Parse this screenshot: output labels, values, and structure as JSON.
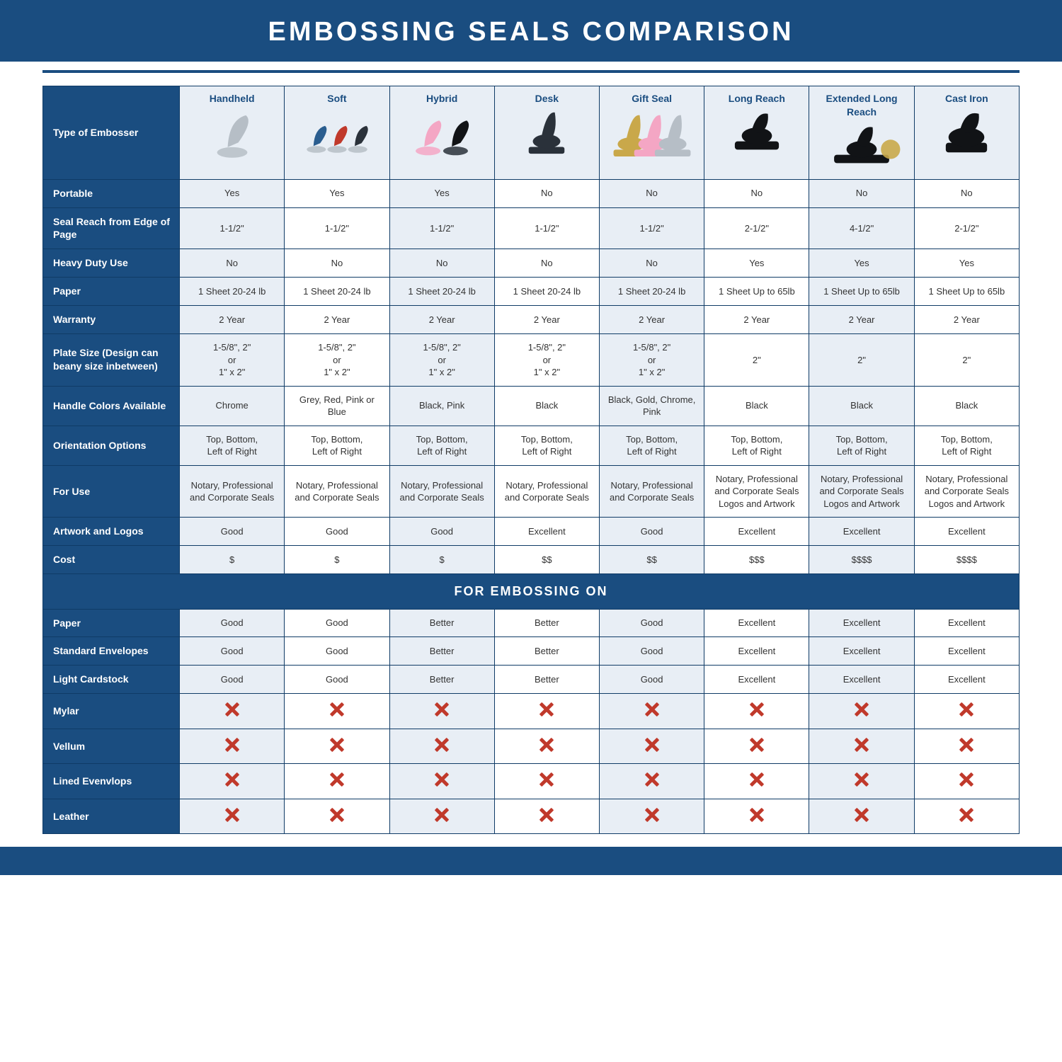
{
  "type": "comparison-table",
  "title": "EMBOSSING SEALS COMPARISON",
  "colors": {
    "header_bg": "#1a4d80",
    "header_text": "#ffffff",
    "alt_row_bg": "#e8eef5",
    "plain_row_bg": "#ffffff",
    "border": "#0f3b66",
    "x_mark": "#c0392b",
    "colhead_text": "#1a4d80"
  },
  "typography": {
    "title_fontsize": 38,
    "title_letter_spacing": 4,
    "rowhead_fontsize": 14,
    "cell_fontsize": 13,
    "section_header_fontsize": 18
  },
  "columns": [
    {
      "key": "handheld",
      "label": "Handheld",
      "svg_style": "silver-single"
    },
    {
      "key": "soft",
      "label": "Soft",
      "svg_style": "multi-color"
    },
    {
      "key": "hybrid",
      "label": "Hybrid",
      "svg_style": "pink-black"
    },
    {
      "key": "desk",
      "label": "Desk",
      "svg_style": "dark-desk"
    },
    {
      "key": "gift",
      "label": "Gift Seal",
      "svg_style": "gold-pink-chrome"
    },
    {
      "key": "longreach",
      "label": "Long Reach",
      "svg_style": "black-long"
    },
    {
      "key": "extended",
      "label": "Extended Long Reach",
      "svg_style": "black-ext"
    },
    {
      "key": "castiron",
      "label": "Cast Iron",
      "svg_style": "black-heavy"
    }
  ],
  "row_header_label": "Type of Embosser",
  "section2_title": "FOR EMBOSSING ON",
  "rows_section1": [
    {
      "label": "Portable",
      "cells": [
        "Yes",
        "Yes",
        "Yes",
        "No",
        "No",
        "No",
        "No",
        "No"
      ]
    },
    {
      "label": "Seal Reach from Edge of Page",
      "cells": [
        "1-1/2\"",
        "1-1/2\"",
        "1-1/2\"",
        "1-1/2\"",
        "1-1/2\"",
        "2-1/2\"",
        "4-1/2\"",
        "2-1/2\""
      ]
    },
    {
      "label": "Heavy Duty Use",
      "cells": [
        "No",
        "No",
        "No",
        "No",
        "No",
        "Yes",
        "Yes",
        "Yes"
      ]
    },
    {
      "label": "Paper",
      "cells": [
        "1 Sheet 20-24 lb",
        "1 Sheet 20-24 lb",
        "1 Sheet 20-24 lb",
        "1 Sheet 20-24 lb",
        "1 Sheet 20-24 lb",
        "1 Sheet Up to 65lb",
        "1 Sheet Up to 65lb",
        "1 Sheet Up to 65lb"
      ]
    },
    {
      "label": "Warranty",
      "cells": [
        "2 Year",
        "2 Year",
        "2 Year",
        "2 Year",
        "2 Year",
        "2 Year",
        "2 Year",
        "2 Year"
      ]
    },
    {
      "label": "Plate Size (Design can beany size inbetween)",
      "cells": [
        "1-5/8\", 2\"\nor\n1\" x 2\"",
        "1-5/8\", 2\"\nor\n1\" x 2\"",
        "1-5/8\", 2\"\nor\n1\" x 2\"",
        "1-5/8\", 2\"\nor\n1\" x 2\"",
        "1-5/8\", 2\"\nor\n1\" x 2\"",
        "2\"",
        "2\"",
        "2\""
      ]
    },
    {
      "label": "Handle Colors Available",
      "cells": [
        "Chrome",
        "Grey, Red, Pink or Blue",
        "Black, Pink",
        "Black",
        "Black, Gold, Chrome, Pink",
        "Black",
        "Black",
        "Black"
      ]
    },
    {
      "label": "Orientation Options",
      "cells": [
        "Top, Bottom,\nLeft of Right",
        "Top, Bottom,\nLeft of Right",
        "Top, Bottom,\nLeft of Right",
        "Top, Bottom,\nLeft of Right",
        "Top, Bottom,\nLeft of Right",
        "Top, Bottom,\nLeft of Right",
        "Top, Bottom,\nLeft of Right",
        "Top, Bottom,\nLeft of Right"
      ]
    },
    {
      "label": "For Use",
      "cells": [
        "Notary, Professional and Corporate Seals",
        "Notary, Professional and Corporate Seals",
        "Notary, Professional and Corporate Seals",
        "Notary, Professional and Corporate Seals",
        "Notary, Professional and Corporate Seals",
        "Notary, Professional and Corporate Seals Logos and Artwork",
        "Notary, Professional and Corporate Seals Logos and Artwork",
        "Notary, Professional and Corporate Seals Logos and Artwork"
      ]
    },
    {
      "label": "Artwork and Logos",
      "cells": [
        "Good",
        "Good",
        "Good",
        "Excellent",
        "Good",
        "Excellent",
        "Excellent",
        "Excellent"
      ]
    },
    {
      "label": "Cost",
      "cells": [
        "$",
        "$",
        "$",
        "$$",
        "$$",
        "$$$",
        "$$$$",
        "$$$$"
      ]
    }
  ],
  "rows_section2": [
    {
      "label": "Paper",
      "cells": [
        "Good",
        "Good",
        "Better",
        "Better",
        "Good",
        "Excellent",
        "Excellent",
        "Excellent"
      ]
    },
    {
      "label": "Standard Envelopes",
      "cells": [
        "Good",
        "Good",
        "Better",
        "Better",
        "Good",
        "Excellent",
        "Excellent",
        "Excellent"
      ]
    },
    {
      "label": "Light Cardstock",
      "cells": [
        "Good",
        "Good",
        "Better",
        "Better",
        "Good",
        "Excellent",
        "Excellent",
        "Excellent"
      ]
    },
    {
      "label": "Mylar",
      "cells": [
        "X",
        "X",
        "X",
        "X",
        "X",
        "X",
        "X",
        "X"
      ]
    },
    {
      "label": "Vellum",
      "cells": [
        "X",
        "X",
        "X",
        "X",
        "X",
        "X",
        "X",
        "X"
      ]
    },
    {
      "label": "Lined Evenvlops",
      "cells": [
        "X",
        "X",
        "X",
        "X",
        "X",
        "X",
        "X",
        "X"
      ]
    },
    {
      "label": "Leather",
      "cells": [
        "X",
        "X",
        "X",
        "X",
        "X",
        "X",
        "X",
        "X"
      ]
    }
  ],
  "embosser_palette": {
    "silver": "#b6bec6",
    "dark": "#2a313a",
    "pink": "#f4a6c4",
    "red": "#c0392b",
    "blue": "#2a5d8f",
    "gold": "#c9a84a",
    "black": "#111316"
  }
}
